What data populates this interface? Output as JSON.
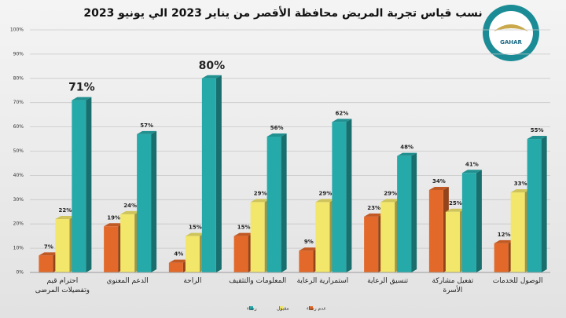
{
  "chart_data": {
    "type": "bar",
    "title": "نسب قياس تجربة المريض محافظة الأقصر من يناير 2023 الي يونيو 2023",
    "logo_text": "GAHAR",
    "categories": [
      "احترام قيم وتفضيلات المرضى",
      "الدعم المعنوي",
      "الراحة",
      "المعلومات والتثقيف",
      "استمرارية الرعاية",
      "تنسيق الرعاية",
      "تفعيل مشاركة الأسرة",
      "الوصول للخدمات"
    ],
    "series": [
      {
        "name": "عدم رضاء",
        "color": "#e2692a",
        "values": [
          7,
          19,
          4,
          15,
          9,
          23,
          34,
          12
        ],
        "value_labels": [
          "7%",
          "19%",
          "4%",
          "15%",
          "9%",
          "23%",
          "34%",
          "12%"
        ]
      },
      {
        "name": "مقبول",
        "color": "#f2e66b",
        "values": [
          22,
          24,
          15,
          29,
          29,
          29,
          25,
          33
        ],
        "value_labels": [
          "22%",
          "24%",
          "15%",
          "29%",
          "29%",
          "29%",
          "25%",
          "33%"
        ]
      },
      {
        "name": "رضاء",
        "color": "#26a9a9",
        "values": [
          71,
          57,
          80,
          56,
          62,
          48,
          41,
          55
        ],
        "value_labels": [
          "71%",
          "57%",
          "80%",
          "56%",
          "62%",
          "48%",
          "41%",
          "55%"
        ]
      }
    ],
    "ylim": [
      0,
      100
    ],
    "yticks": [
      {
        "value": 0,
        "label": "0%"
      },
      {
        "value": 10,
        "label": "10%"
      },
      {
        "value": 20,
        "label": "20%"
      },
      {
        "value": 30,
        "label": "30%"
      },
      {
        "value": 40,
        "label": "40%"
      },
      {
        "value": 50,
        "label": "50%"
      },
      {
        "value": 60,
        "label": "60%"
      },
      {
        "value": 70,
        "label": "70%"
      },
      {
        "value": 80,
        "label": "80%"
      },
      {
        "value": 90,
        "label": "90%"
      },
      {
        "value": 100,
        "label": "100%"
      }
    ],
    "grid": true,
    "legend": "bottom"
  }
}
